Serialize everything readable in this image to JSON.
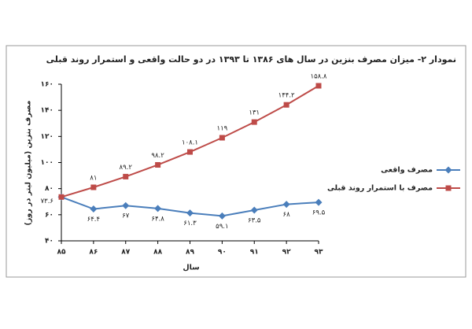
{
  "chart_data": {
    "type": "line",
    "title": "نمودار ۲- میزان مصرف بنزین در سال های ۱۳۸۶ تا ۱۳۹۳ در دو حالت واقعی و استمرار روند قبلی",
    "x_label": "سال",
    "y_label": "مصرف بنزین (میلیون لیتر در روز)",
    "categories": [
      "۸۵",
      "۸۶",
      "۸۷",
      "۸۸",
      "۸۹",
      "۹۰",
      "۹۱",
      "۹۲",
      "۹۳"
    ],
    "ylim": [
      40,
      160
    ],
    "yticks": [
      {
        "value": 40,
        "label": "۴۰"
      },
      {
        "value": 60,
        "label": "۶۰"
      },
      {
        "value": 80,
        "label": "۸۰"
      },
      {
        "value": 100,
        "label": "۱۰۰"
      },
      {
        "value": 120,
        "label": "۱۲۰"
      },
      {
        "value": 140,
        "label": "۱۴۰"
      },
      {
        "value": 160,
        "label": "۱۶۰"
      }
    ],
    "grid": false,
    "series": [
      {
        "name": "مصرف واقعی",
        "color": "#4a7ebb",
        "marker": "diamond",
        "values": [
          73.6,
          64.4,
          67,
          64.8,
          61.3,
          59.1,
          63.5,
          68,
          69.5
        ],
        "value_labels": [
          "۷۳.۶",
          "۶۴.۴",
          "۶۷",
          "۶۴.۸",
          "۶۱.۳",
          "۵۹.۱",
          "۶۳.۵",
          "۶۸",
          "۶۹.۵"
        ]
      },
      {
        "name": "مصرف با استمرار روند قبلی",
        "color": "#be4b48",
        "marker": "square",
        "values": [
          73.6,
          81,
          89.2,
          98.2,
          108.1,
          119,
          131,
          144.2,
          158.8
        ],
        "value_labels": [
          null,
          "۸۱",
          "۸۹.۲",
          "۹۸.۲",
          "۱۰۸.۱",
          "۱۱۹",
          "۱۳۱",
          "۱۴۴.۲",
          "۱۵۸.۸"
        ]
      }
    ]
  }
}
